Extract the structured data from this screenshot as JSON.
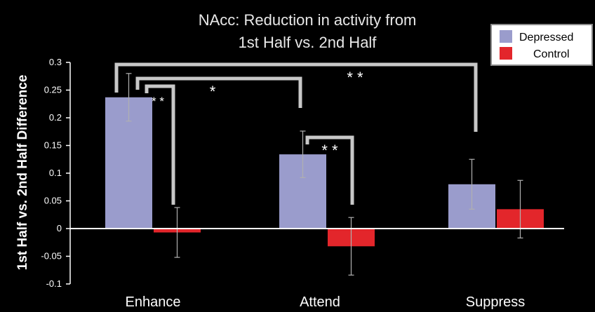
{
  "chart_data": {
    "type": "bar",
    "title": "NAcc: Reduction in activity from",
    "subtitle": "1st Half vs. 2nd Half",
    "xlabel": "",
    "ylabel": "1st Half vs. 2nd Half Difference",
    "categories": [
      "Enhance",
      "Attend",
      "Suppress"
    ],
    "series": [
      {
        "name": "Depressed",
        "color": "#9a9ccc",
        "values": [
          0.237,
          0.134,
          0.08
        ],
        "error": [
          0.043,
          0.042,
          0.045
        ]
      },
      {
        "name": "Control",
        "color": "#e3262b",
        "values": [
          -0.007,
          -0.032,
          0.035
        ],
        "error": [
          0.045,
          0.052,
          0.052
        ]
      }
    ],
    "ylim": [
      -0.1,
      0.3
    ],
    "yticks": [
      "0.3",
      "0.25",
      "0.2",
      "0.15",
      "0.1",
      "0.05",
      "0",
      "-0.05",
      "-0.1"
    ],
    "ytick_values": [
      0.3,
      0.25,
      0.2,
      0.15,
      0.1,
      0.05,
      0,
      -0.05,
      -0.1
    ],
    "legend_position": "top-right",
    "grid": false,
    "background_color": "#000000",
    "annotations": [
      {
        "label": "* *",
        "text": "significance Enhance Depressed vs Control"
      },
      {
        "label": "*",
        "text": "significance Enhance vs Attend"
      },
      {
        "label": "* *",
        "text": "significance Enhance vs Suppress"
      },
      {
        "label": "* *",
        "text": "significance Attend Depressed vs Control"
      }
    ]
  }
}
